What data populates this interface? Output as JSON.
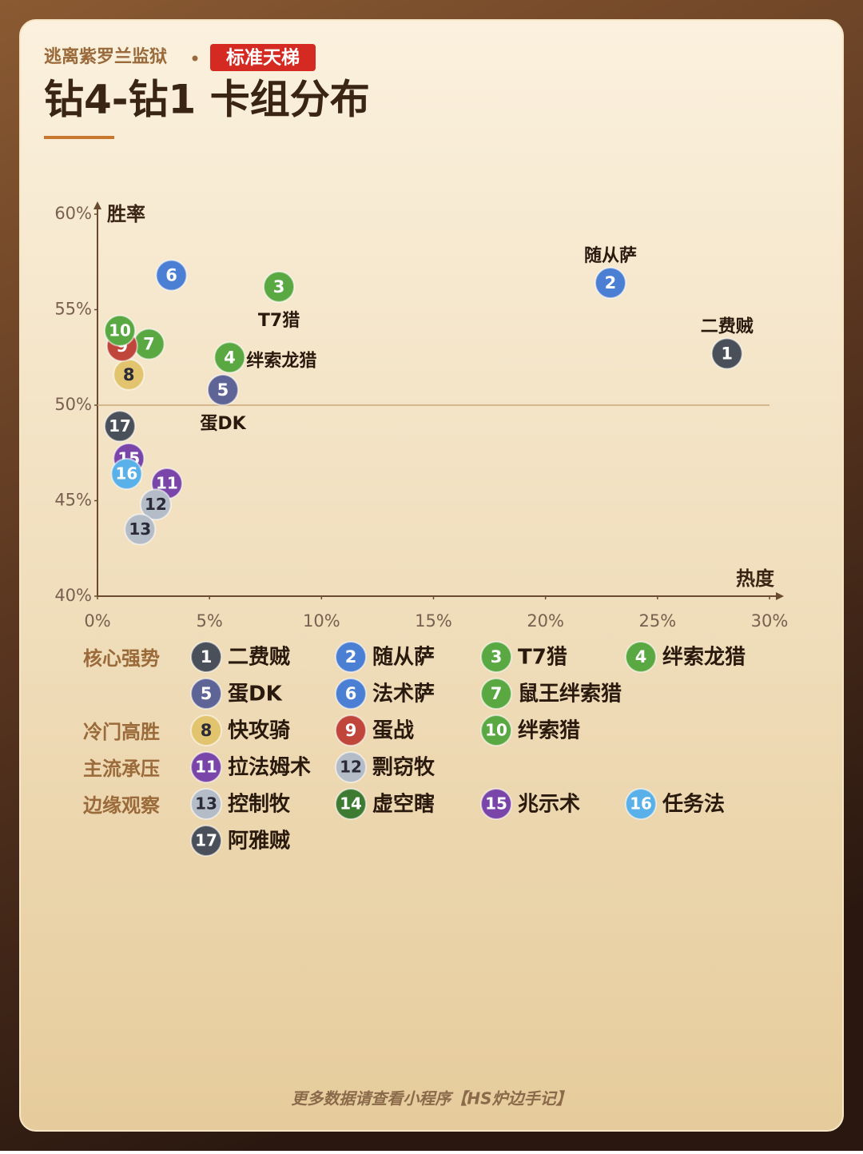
{
  "header": {
    "game": "逃离紫罗兰监狱",
    "mode": "标准天梯",
    "title": "钻4-钻1 卡组分布"
  },
  "chart_data": {
    "type": "scatter",
    "y_label": "胜率",
    "x_label": "热度",
    "xlim": [
      0,
      30
    ],
    "ylim": [
      40,
      60
    ],
    "xticks": [
      {
        "value": 0,
        "label": "0%"
      },
      {
        "value": 5,
        "label": "5%"
      },
      {
        "value": 10,
        "label": "10%"
      },
      {
        "value": 15,
        "label": "15%"
      },
      {
        "value": 20,
        "label": "20%"
      },
      {
        "value": 25,
        "label": "25%"
      },
      {
        "value": 30,
        "label": "30%"
      }
    ],
    "yticks": [
      {
        "value": 40,
        "label": "40%"
      },
      {
        "value": 45,
        "label": "45%"
      },
      {
        "value": 50,
        "label": "50%"
      },
      {
        "value": 55,
        "label": "55%"
      },
      {
        "value": 60,
        "label": "60%"
      }
    ],
    "reference_line": 50,
    "groups": [
      {
        "name": "核心强势",
        "points": [
          {
            "id": 1,
            "name": "二费贼",
            "color": "#4a5059",
            "x": 28.1,
            "y": 52.7,
            "callout": "above"
          },
          {
            "id": 2,
            "name": "随从萨",
            "color": "#4a7fd4",
            "x": 22.9,
            "y": 56.4,
            "callout": "above"
          },
          {
            "id": 3,
            "name": "T7猎",
            "color": "#5aa842",
            "x": 8.1,
            "y": 56.2,
            "callout": "below"
          },
          {
            "id": 4,
            "name": "绊索龙猎",
            "color": "#5aa842",
            "x": 5.9,
            "y": 52.5,
            "callout": "right"
          },
          {
            "id": 5,
            "name": "蛋DK",
            "color": "#5f6496",
            "x": 5.6,
            "y": 50.8,
            "callout": "below"
          },
          {
            "id": 6,
            "name": "法术萨",
            "color": "#4a7fd4",
            "x": 3.3,
            "y": 56.8
          },
          {
            "id": 7,
            "name": "鼠王绊索猎",
            "color": "#5aa842",
            "x": 2.3,
            "y": 53.2
          }
        ]
      },
      {
        "name": "冷门高胜",
        "points": [
          {
            "id": 8,
            "name": "快攻骑",
            "color": "#e2c46e",
            "x": 1.4,
            "y": 51.6
          },
          {
            "id": 9,
            "name": "蛋战",
            "color": "#c0463c",
            "x": 1.1,
            "y": 53.1
          },
          {
            "id": 10,
            "name": "绊索猎",
            "color": "#5aa842",
            "x": 1.0,
            "y": 53.9
          }
        ]
      },
      {
        "name": "主流承压",
        "points": [
          {
            "id": 11,
            "name": "拉法姆术",
            "color": "#7a45a8",
            "x": 3.1,
            "y": 45.9
          },
          {
            "id": 12,
            "name": "剽窃牧",
            "color": "#b4bcc8",
            "x": 2.6,
            "y": 44.8
          }
        ]
      },
      {
        "name": "边缘观察",
        "points": [
          {
            "id": 13,
            "name": "控制牧",
            "color": "#b4bcc8",
            "x": 1.9,
            "y": 43.5
          },
          {
            "id": 14,
            "name": "虚空瞎",
            "color": "#3d7a32",
            "x": null,
            "y": null
          },
          {
            "id": 15,
            "name": "兆示术",
            "color": "#7a45a8",
            "x": 1.4,
            "y": 47.2
          },
          {
            "id": 16,
            "name": "任务法",
            "color": "#5ab0e8",
            "x": 1.3,
            "y": 46.4
          },
          {
            "id": 17,
            "name": "阿雅贼",
            "color": "#4a5059",
            "x": 1.0,
            "y": 48.9
          }
        ]
      }
    ]
  },
  "footer": "更多数据请查看小程序【HS炉边手记】"
}
